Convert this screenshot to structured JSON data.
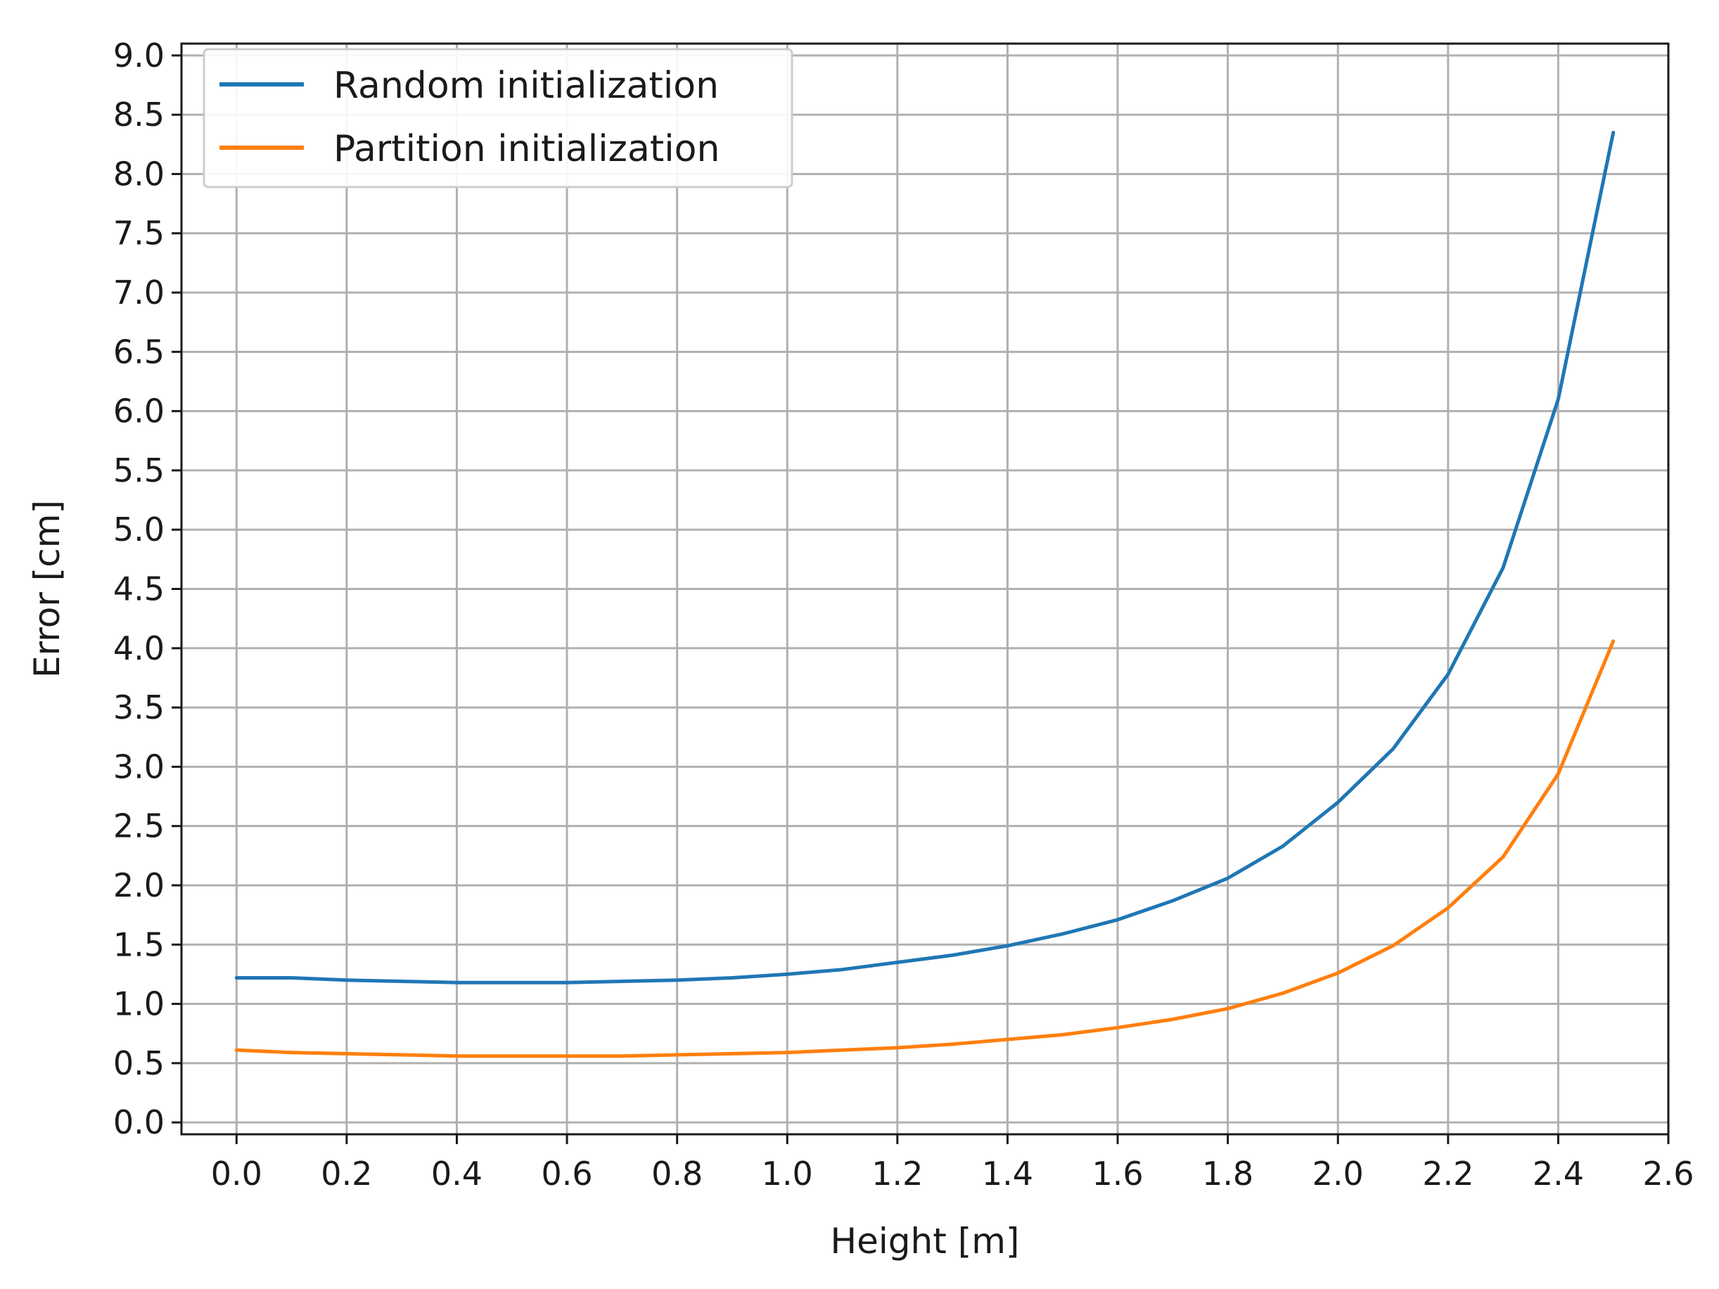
{
  "chart_data": {
    "type": "line",
    "xlabel": "Height [m]",
    "ylabel": "Error [cm]",
    "xlim": [
      -0.1,
      2.6
    ],
    "ylim": [
      -0.1,
      9.1
    ],
    "xticks": [
      0.0,
      0.2,
      0.4,
      0.6,
      0.8,
      1.0,
      1.2,
      1.4,
      1.6,
      1.8,
      2.0,
      2.2,
      2.4,
      2.6
    ],
    "xtick_labels": [
      "0.0",
      "0.2",
      "0.4",
      "0.6",
      "0.8",
      "1.0",
      "1.2",
      "1.4",
      "1.6",
      "1.8",
      "2.0",
      "2.2",
      "2.4",
      "2.6"
    ],
    "yticks": [
      0.0,
      0.5,
      1.0,
      1.5,
      2.0,
      2.5,
      3.0,
      3.5,
      4.0,
      4.5,
      5.0,
      5.5,
      6.0,
      6.5,
      7.0,
      7.5,
      8.0,
      8.5,
      9.0
    ],
    "ytick_labels": [
      "0.0",
      "0.5",
      "1.0",
      "1.5",
      "2.0",
      "2.5",
      "3.0",
      "3.5",
      "4.0",
      "4.5",
      "5.0",
      "5.5",
      "6.0",
      "6.5",
      "7.0",
      "7.5",
      "8.0",
      "8.5",
      "9.0"
    ],
    "grid": true,
    "legend_position": "top-left",
    "x": [
      0.0,
      0.1,
      0.2,
      0.3,
      0.4,
      0.5,
      0.6,
      0.7,
      0.8,
      0.9,
      1.0,
      1.1,
      1.2,
      1.3,
      1.4,
      1.5,
      1.6,
      1.7,
      1.8,
      1.9,
      2.0,
      2.1,
      2.2,
      2.3,
      2.4,
      2.5
    ],
    "series": [
      {
        "name": "Random initialization",
        "color": "#1f77b4",
        "values": [
          1.22,
          1.22,
          1.2,
          1.19,
          1.18,
          1.18,
          1.18,
          1.19,
          1.2,
          1.22,
          1.25,
          1.29,
          1.35,
          1.41,
          1.49,
          1.59,
          1.71,
          1.87,
          2.06,
          2.33,
          2.7,
          3.15,
          3.78,
          4.68,
          6.1,
          8.35
        ]
      },
      {
        "name": "Partition initialization",
        "color": "#ff7f0e",
        "values": [
          0.61,
          0.59,
          0.58,
          0.57,
          0.56,
          0.56,
          0.56,
          0.56,
          0.57,
          0.58,
          0.59,
          0.61,
          0.63,
          0.66,
          0.7,
          0.74,
          0.8,
          0.87,
          0.96,
          1.09,
          1.26,
          1.49,
          1.81,
          2.24,
          2.94,
          4.06
        ]
      }
    ]
  }
}
